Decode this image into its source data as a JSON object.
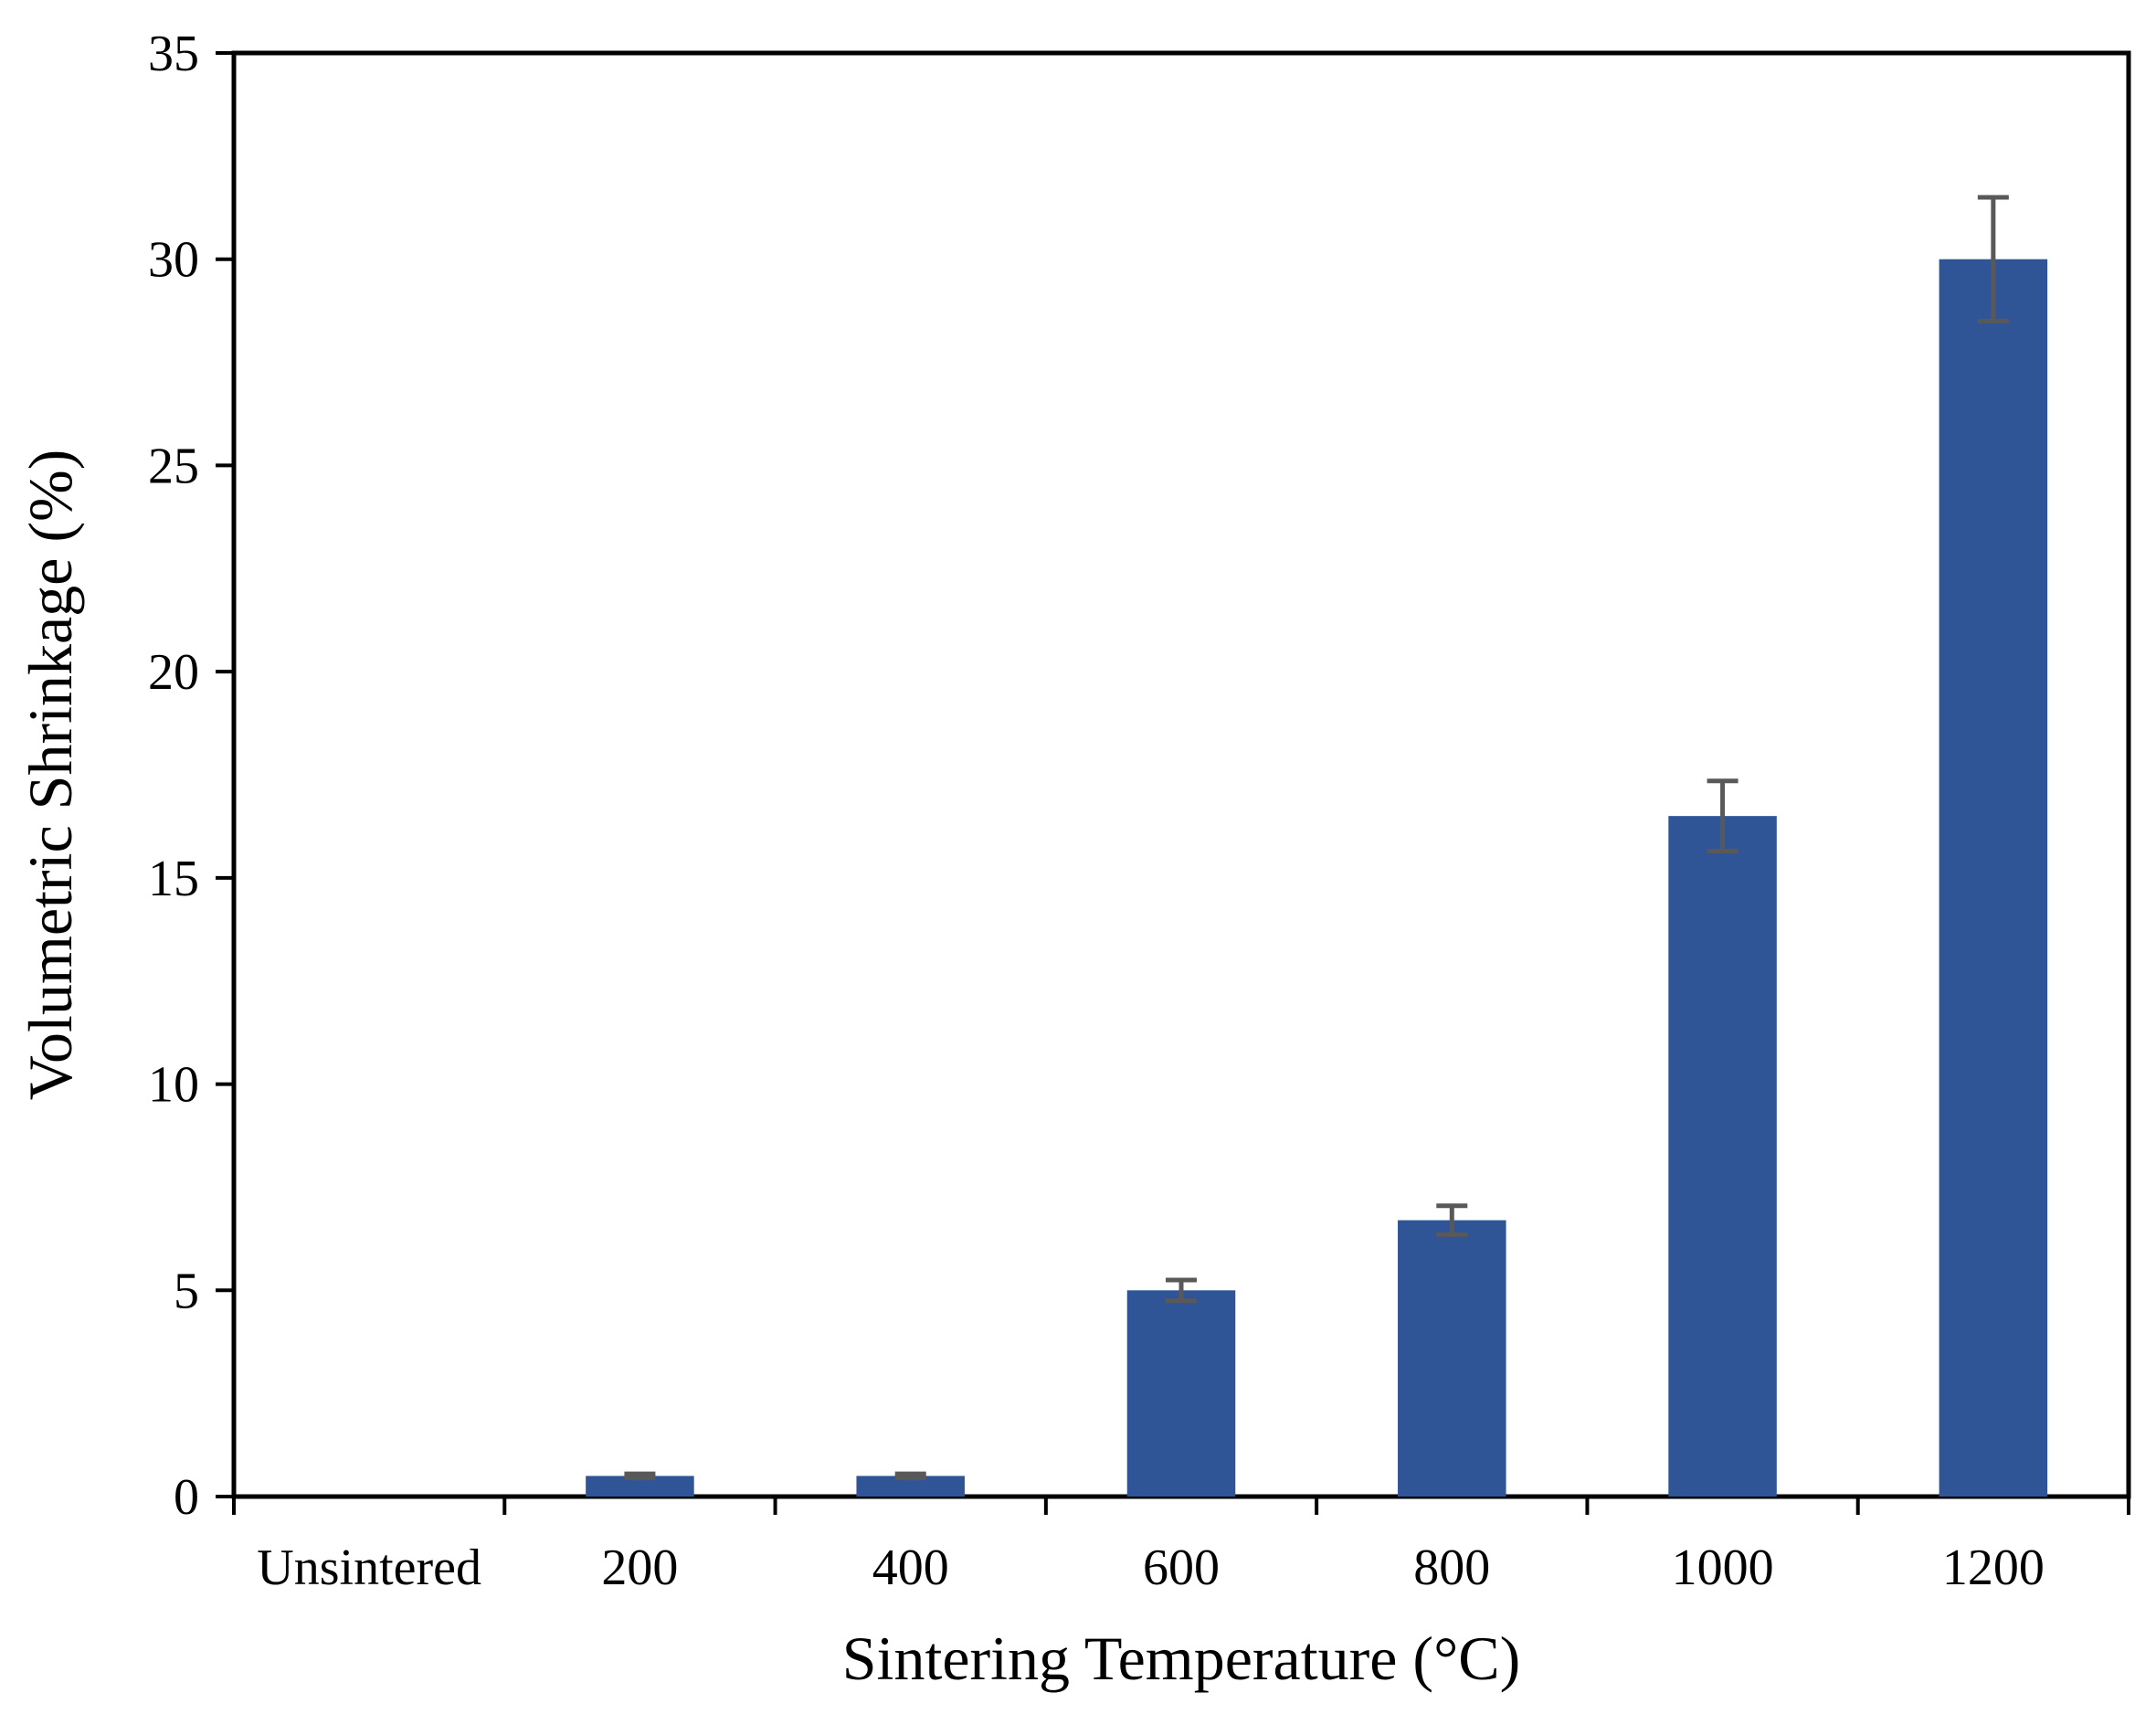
{
  "chart_data": {
    "type": "bar",
    "title": "",
    "xlabel": "Sintering Temperature (°C)",
    "ylabel": "Volumetric Shrinkage (%)",
    "categories": [
      "Unsintered",
      "200",
      "400",
      "600",
      "800",
      "1000",
      "1200"
    ],
    "values": [
      0,
      0.5,
      0.5,
      5.0,
      6.7,
      16.5,
      30.0
    ],
    "errors": [
      0,
      0.05,
      0.05,
      0.25,
      0.35,
      0.85,
      1.5
    ],
    "ylim": [
      0,
      35
    ],
    "yticks": [
      0,
      5,
      10,
      15,
      20,
      25,
      30,
      35
    ],
    "grid": false,
    "legend": "none",
    "colors": {
      "bar": "#2f5597",
      "error_bar": "#595959",
      "axis": "#000000"
    }
  }
}
